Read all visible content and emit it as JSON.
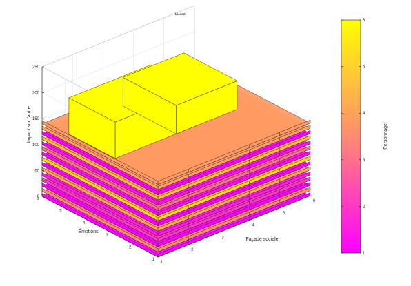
{
  "chart_data": {
    "type": "3d-surface-slabs",
    "title": "Lissom",
    "xlabel": "Façade sociale",
    "ylabel": "Émotions",
    "zlabel": "Impact sur l'autre",
    "x_ticks": [
      "1",
      "2",
      "3",
      "4",
      "5",
      "6"
    ],
    "y_ticks": [
      "1",
      "2",
      "3",
      "4",
      "5",
      "6"
    ],
    "z_ticks": [
      "0",
      "50",
      "100",
      "150",
      "200",
      "250"
    ],
    "xlim": [
      1,
      6
    ],
    "ylim": [
      1,
      6
    ],
    "zlim": [
      0,
      250
    ],
    "grid": true,
    "colorbar": {
      "label": "Personnage",
      "ticks": [
        "1",
        "2",
        "3",
        "4",
        "5",
        "6"
      ],
      "range": [
        1,
        6
      ],
      "colormap": [
        "#ff00ff",
        "#ff8080",
        "#ffff00"
      ]
    },
    "slabs": [
      {
        "z": 0,
        "color_value": 1
      },
      {
        "z": 10,
        "color_value": 3.5
      },
      {
        "z": 20,
        "color_value": 1
      },
      {
        "z": 30,
        "color_value": 2
      },
      {
        "z": 40,
        "color_value": 1.5
      },
      {
        "z": 50,
        "color_value": 4
      },
      {
        "z": 60,
        "color_value": 1
      },
      {
        "z": 70,
        "color_value": 5
      },
      {
        "z": 80,
        "color_value": 1.2
      },
      {
        "z": 90,
        "color_value": 3
      },
      {
        "z": 100,
        "color_value": 1.3
      },
      {
        "z": 110,
        "color_value": 4.5
      },
      {
        "z": 120,
        "color_value": 1
      },
      {
        "z": 130,
        "color_value": 4
      },
      {
        "z": 140,
        "color_value": 3.8
      }
    ],
    "peaks": [
      {
        "x0": 1.5,
        "x1": 4.2,
        "y0": 3.5,
        "y1": 5.5,
        "z": 190,
        "color_value": 6
      },
      {
        "x0": 3.5,
        "x1": 5.5,
        "y0": 3.5,
        "y1": 5.8,
        "z": 175,
        "color_value": 6
      }
    ]
  }
}
